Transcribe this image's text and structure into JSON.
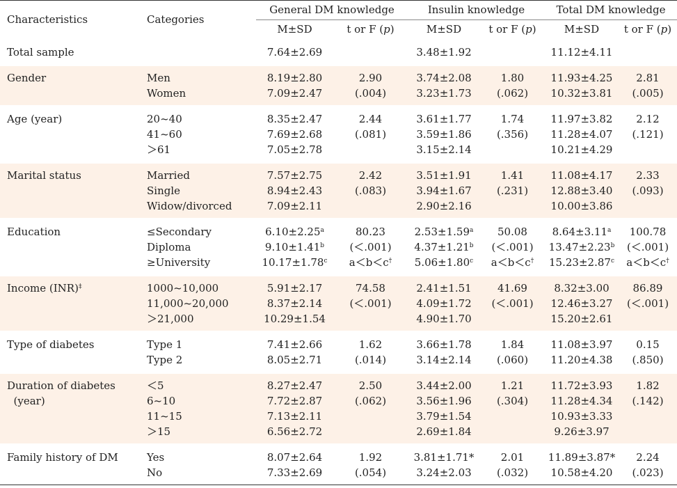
{
  "headers": {
    "characteristics": "Characteristics",
    "categories": "Categories",
    "general": "General DM knowledge",
    "insulin": "Insulin knowledge",
    "total": "Total DM knowledge",
    "msd": "M±SD",
    "tf_prefix": "t or F (",
    "tf_p": "p",
    "tf_suffix": ")"
  },
  "rows": [
    {
      "char": [
        "Total sample"
      ],
      "cats": [
        ""
      ],
      "g": [
        "7.64±2.69"
      ],
      "gt": [
        ""
      ],
      "i": [
        "3.48±1.92"
      ],
      "it": [
        ""
      ],
      "t": [
        "11.12±4.11"
      ],
      "tt": [
        ""
      ]
    },
    {
      "char": [
        "Gender"
      ],
      "cats": [
        "Men",
        "Women"
      ],
      "g": [
        "8.19±2.80",
        "7.09±2.47"
      ],
      "gt": [
        "2.90",
        "(.004)"
      ],
      "i": [
        "3.74±2.08",
        "3.23±1.73"
      ],
      "it": [
        "1.80",
        "(.062)"
      ],
      "t": [
        "11.93±4.25",
        "10.32±3.81"
      ],
      "tt": [
        "2.81",
        "(.005)"
      ]
    },
    {
      "char": [
        "Age (year)"
      ],
      "cats": [
        "20~40",
        "41~60",
        "＞61"
      ],
      "g": [
        "8.35±2.47",
        "7.69±2.68",
        "7.05±2.78"
      ],
      "gt": [
        "2.44",
        "(.081)"
      ],
      "i": [
        "3.61±1.77",
        "3.59±1.86",
        "3.15±2.14"
      ],
      "it": [
        "1.74",
        "(.356)"
      ],
      "t": [
        "11.97±3.82",
        "11.28±4.07",
        "10.21±4.29"
      ],
      "tt": [
        "2.12",
        "(.121)"
      ]
    },
    {
      "char": [
        "Marital status"
      ],
      "cats": [
        "Married",
        "Single",
        "Widow/divorced"
      ],
      "g": [
        "7.57±2.75",
        "8.94±2.43",
        "7.09±2.11"
      ],
      "gt": [
        "2.42",
        "(.083)"
      ],
      "i": [
        "3.51±1.91",
        "3.94±1.67",
        "2.90±2.16"
      ],
      "it": [
        "1.41",
        "(.231)"
      ],
      "t": [
        "11.08±4.17",
        "12.88±3.40",
        "10.00±3.86"
      ],
      "tt": [
        "2.33",
        "(.093)"
      ]
    },
    {
      "char": [
        "Education"
      ],
      "cats": [
        "≤Secondary",
        "Diploma",
        "≥University"
      ],
      "g": [
        "6.10±2.25",
        "9.10±1.41",
        "10.17±1.78"
      ],
      "gs": [
        "a",
        "b",
        "c"
      ],
      "gt": [
        "80.23",
        "(＜.001)",
        "a＜b＜c"
      ],
      "gts": [
        "",
        "",
        "†"
      ],
      "i": [
        "2.53±1.59",
        "4.37±1.21",
        "5.06±1.80"
      ],
      "is": [
        "a",
        "b",
        "c"
      ],
      "it": [
        "50.08",
        "(＜.001)",
        "a＜b＜c"
      ],
      "its": [
        "",
        "",
        "†"
      ],
      "t": [
        "8.64±3.11",
        "13.47±2.23",
        "15.23±2.87"
      ],
      "ts": [
        "a",
        "b",
        "c"
      ],
      "tt": [
        "100.78",
        "(＜.001)",
        "a＜b＜c"
      ],
      "tts": [
        "",
        "",
        "†"
      ]
    },
    {
      "char": [
        "Income (INR)"
      ],
      "chars": [
        "‡"
      ],
      "cats": [
        "1000~10,000",
        "11,000~20,000",
        "＞21,000"
      ],
      "g": [
        "5.91±2.17",
        "8.37±2.14",
        "10.29±1.54"
      ],
      "gt": [
        "74.58",
        "(＜.001)"
      ],
      "i": [
        "2.41±1.51",
        "4.09±1.72",
        "4.90±1.70"
      ],
      "it": [
        "41.69",
        "(＜.001)"
      ],
      "t": [
        "8.32±3.00",
        "12.46±3.27",
        "15.20±2.61"
      ],
      "tt": [
        "86.89",
        "(＜.001)"
      ]
    },
    {
      "char": [
        "Type of diabetes"
      ],
      "cats": [
        "Type 1",
        "Type 2"
      ],
      "g": [
        "7.41±2.66",
        "8.05±2.71"
      ],
      "gt": [
        "1.62",
        "(.014)"
      ],
      "i": [
        "3.66±1.78",
        "3.14±2.14"
      ],
      "it": [
        "1.84",
        "(.060)"
      ],
      "t": [
        "11.08±3.97",
        "11.20±4.38"
      ],
      "tt": [
        "0.15",
        "(.850)"
      ]
    },
    {
      "char": [
        "Duration of diabetes",
        "  (year)"
      ],
      "cats": [
        "＜5",
        "6~10",
        "11~15",
        "＞15"
      ],
      "g": [
        "8.27±2.47",
        "7.72±2.87",
        "7.13±2.11",
        "6.56±2.72"
      ],
      "gt": [
        "2.50",
        "(.062)"
      ],
      "i": [
        "3.44±2.00",
        "3.56±1.96",
        "3.79±1.54",
        "2.69±1.84"
      ],
      "it": [
        "1.21",
        "(.304)"
      ],
      "t": [
        "11.72±3.93",
        "11.28±4.34",
        "10.93±3.33",
        "9.26±3.97"
      ],
      "tt": [
        "1.82",
        "(.142)"
      ]
    },
    {
      "char": [
        "Family history of DM"
      ],
      "cats": [
        "Yes",
        "No"
      ],
      "g": [
        "8.07±2.64",
        "7.33±2.69"
      ],
      "gt": [
        "1.92",
        "(.054)"
      ],
      "i": [
        "3.81±1.71*",
        "3.24±2.03"
      ],
      "it": [
        "2.01",
        "(.032)"
      ],
      "t": [
        "11.89±3.87*",
        "10.58±4.20"
      ],
      "tt": [
        "2.24",
        "(.023)"
      ]
    }
  ]
}
